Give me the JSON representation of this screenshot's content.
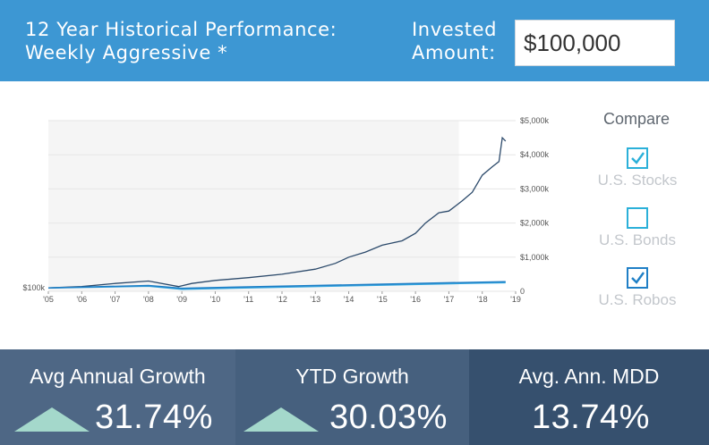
{
  "header": {
    "title_line1": "12 Year Historical Performance:",
    "title_line2": "Weekly Aggressive *",
    "invested_line1": "Invested",
    "invested_line2": "Amount:",
    "amount_value": "$100,000"
  },
  "compare": {
    "title": "Compare",
    "options": [
      {
        "label": "U.S. Stocks",
        "checked": true,
        "color": "#2bb0d9"
      },
      {
        "label": "U.S. Bonds",
        "checked": false,
        "color": "#2bb0d9"
      },
      {
        "label": "U.S. Robos",
        "checked": true,
        "color": "#1f7fc6"
      }
    ]
  },
  "stats": [
    {
      "label": "Avg Annual Growth",
      "value": "31.74%",
      "arrow": "up",
      "bg": "#4e6785"
    },
    {
      "label": "YTD Growth",
      "value": "30.03%",
      "arrow": "up",
      "bg": "#46607e"
    },
    {
      "label": "Avg. Ann. MDD",
      "value": "13.74%",
      "arrow": "none",
      "bg": "#36506e"
    }
  ],
  "chart_data": {
    "type": "line",
    "x_tick_labels": [
      "'05",
      "'06",
      "'07",
      "'08",
      "'09",
      "'10",
      "'11",
      "'12",
      "'13",
      "'14",
      "'15",
      "'16",
      "'17",
      "'18",
      "'19"
    ],
    "y_tick_labels": [
      "0",
      "$1,000k",
      "$2,000k",
      "$3,000k",
      "$4,000k",
      "$5,000k"
    ],
    "start_label": "$100k",
    "ylim": [
      0,
      5000000
    ],
    "xlim": [
      2005.0,
      2019.0
    ],
    "shaded_until": 2017.3,
    "series": [
      {
        "color": "#2c4a6b",
        "x": [
          2005.0,
          2006.0,
          2007.0,
          2008.0,
          2008.9,
          2009.3,
          2010.0,
          2011.0,
          2012.0,
          2013.0,
          2013.6,
          2014.0,
          2014.5,
          2015.0,
          2015.6,
          2016.0,
          2016.3,
          2016.7,
          2017.0,
          2017.4,
          2017.7,
          2018.0,
          2018.3,
          2018.5,
          2018.6,
          2018.7
        ],
        "y": [
          100000,
          140000,
          230000,
          300000,
          140000,
          230000,
          320000,
          400000,
          500000,
          650000,
          820000,
          1000000,
          1150000,
          1350000,
          1480000,
          1700000,
          2000000,
          2300000,
          2350000,
          2650000,
          2900000,
          3400000,
          3650000,
          3800000,
          4500000,
          4400000
        ]
      },
      {
        "color": "#35a6df",
        "x": [
          2005.0,
          2008.0,
          2009.0,
          2012.0,
          2015.0,
          2018.0,
          2018.7
        ],
        "y": [
          100000,
          150000,
          60000,
          120000,
          180000,
          240000,
          250000
        ]
      },
      {
        "color": "#1f7fc6",
        "x": [
          2005.0,
          2008.0,
          2009.0,
          2012.0,
          2015.0,
          2018.0,
          2018.7
        ],
        "y": [
          100000,
          170000,
          90000,
          150000,
          210000,
          270000,
          280000
        ]
      }
    ]
  }
}
